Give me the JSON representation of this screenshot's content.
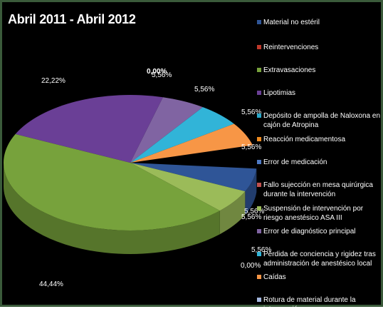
{
  "chart_data": {
    "type": "pie",
    "title": "Abril 2011 - Abril 2012",
    "legend_position": "right",
    "slices": [
      {
        "name": "Material no estéril",
        "value": 5.56,
        "label": "5,56%",
        "color": "#2f5597"
      },
      {
        "name": "Reintervenciones",
        "value": 0,
        "label": "",
        "color": "#c0392b"
      },
      {
        "name": "Extravasaciones",
        "value": 44.44,
        "label": "44,44%",
        "color": "#77a23c"
      },
      {
        "name": "Lipotimias",
        "value": 22.22,
        "label": "22,22%",
        "color": "#6a3f96"
      },
      {
        "name": "Depósito de ampolla de Naloxona en cajón de Atropina",
        "value": 0,
        "label": "0,00%",
        "color": "#2aa7c9"
      },
      {
        "name": "Reacción medicamentosa",
        "value": 5.56,
        "label": "5,56%",
        "color": "#ee8a1f"
      },
      {
        "name": "Error de medicación",
        "value": 0,
        "label": "",
        "color": "#4e79c4"
      },
      {
        "name": "Fallo sujección en mesa quirúrgica durante la intervención",
        "value": 0,
        "label": "",
        "color": "#c0504d"
      },
      {
        "name": "Suspensión de intervención por riesgo anestésico ASA III",
        "value": 5.56,
        "label": "5,56%",
        "color": "#9bbb59"
      },
      {
        "name": "Error de diagnóstico principal",
        "value": 5.56,
        "label": "5,56%",
        "color": "#8064a2"
      },
      {
        "name": "Pérdida de conciencia y rigidez tras administración de anestésico local",
        "value": 5.56,
        "label": "5,56%",
        "color": "#31b4d8"
      },
      {
        "name": "Caídas",
        "value": 5.56,
        "label": "5,56%",
        "color": "#f79646"
      },
      {
        "name": "Rotura de material durante la intervención",
        "value": 0,
        "label": "",
        "color": "#a4b8e0"
      }
    ],
    "extra_labels": [
      "5,56%",
      "0,00%",
      "5,56%"
    ]
  }
}
